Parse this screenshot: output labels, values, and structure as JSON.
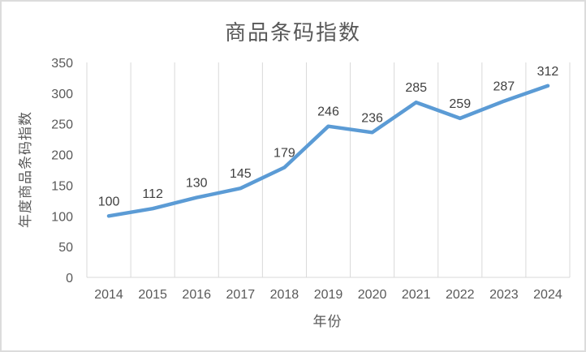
{
  "chart_data": {
    "type": "line",
    "title": "商品条码指数",
    "xlabel": "年份",
    "ylabel": "年度商品条码指数",
    "categories": [
      "2014",
      "2015",
      "2016",
      "2017",
      "2018",
      "2019",
      "2020",
      "2021",
      "2022",
      "2023",
      "2024"
    ],
    "series": [
      {
        "name": "年度商品条码指数",
        "values": [
          100,
          112,
          130,
          145,
          179,
          246,
          236,
          285,
          259,
          287,
          312
        ]
      }
    ],
    "ylim": [
      0,
      350
    ],
    "ytick_step": 50,
    "yticks": [
      0,
      50,
      100,
      150,
      200,
      250,
      300,
      350
    ],
    "grid": "vertical-only",
    "legend_position": "none",
    "data_labels_shown": true,
    "colors": {
      "line": "#5B9BD5",
      "gridline": "#D9D9D9",
      "axis_line": "#D9D9D9",
      "axis_text": "#595959",
      "data_label_text": "#404040",
      "title_text": "#595959",
      "background": "#FFFFFF",
      "frame_border": "#DCDCDC"
    }
  }
}
